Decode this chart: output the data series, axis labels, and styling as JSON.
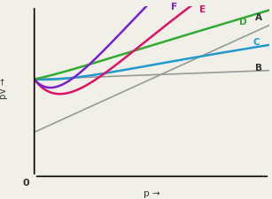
{
  "background_color": "#f0efe8",
  "xlabel": "p →",
  "ylabel": "pV →",
  "origin_label": "0",
  "xlim": [
    0,
    10
  ],
  "ylim": [
    -3.5,
    10.0
  ],
  "start_y": 4.2,
  "curves": {
    "A": {
      "color": "#999999",
      "lw": 1.2
    },
    "B": {
      "color": "#999999",
      "lw": 1.2
    },
    "C": {
      "color": "#2299cc",
      "lw": 1.8
    },
    "D": {
      "color": "#33aa33",
      "lw": 1.8
    },
    "E": {
      "color": "#dd1166",
      "lw": 1.8
    },
    "F": {
      "color": "#7722cc",
      "lw": 1.8
    }
  },
  "label_colors": {
    "A": "#333333",
    "B": "#333333",
    "C": "#2299cc",
    "D": "#33aa33",
    "E": "#dd1166",
    "F": "#7722cc"
  },
  "fontsize": 7.5
}
